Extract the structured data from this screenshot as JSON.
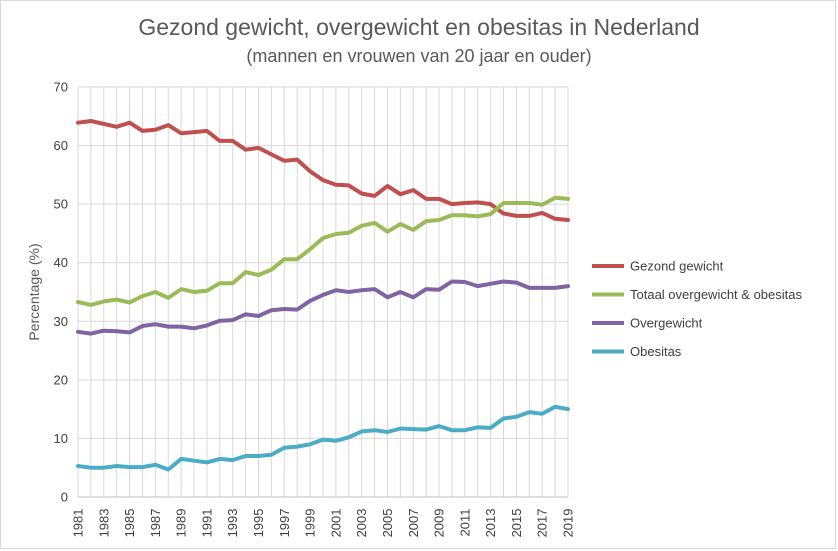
{
  "chart_data": {
    "type": "line",
    "title": "Gezond gewicht, overgewicht en obesitas in Nederland",
    "subtitle": "(mannen en vrouwen van 20 jaar en ouder)",
    "xlabel": "",
    "ylabel": "Percentage (%)",
    "ylim": [
      0,
      70
    ],
    "yticks": [
      0,
      10,
      20,
      30,
      40,
      50,
      60,
      70
    ],
    "x": [
      1981,
      1982,
      1983,
      1984,
      1985,
      1986,
      1987,
      1988,
      1989,
      1990,
      1991,
      1992,
      1993,
      1994,
      1995,
      1996,
      1997,
      1998,
      1999,
      2000,
      2001,
      2002,
      2003,
      2004,
      2005,
      2006,
      2007,
      2008,
      2009,
      2010,
      2011,
      2012,
      2013,
      2014,
      2015,
      2016,
      2017,
      2018,
      2019
    ],
    "xtick_labels": [
      "1981",
      "1983",
      "1985",
      "1987",
      "1989",
      "1991",
      "1993",
      "1995",
      "1997",
      "1999",
      "2001",
      "2003",
      "2005",
      "2007",
      "2009",
      "2011",
      "2013",
      "2015",
      "2017",
      "2019"
    ],
    "grid": true,
    "legend": "right",
    "series": [
      {
        "name": "Gezond gewicht",
        "color": "#c0504d",
        "values": [
          63.9,
          64.2,
          63.7,
          63.2,
          63.9,
          62.5,
          62.7,
          63.5,
          62.1,
          62.3,
          62.5,
          60.8,
          60.8,
          59.3,
          59.6,
          58.5,
          57.4,
          57.6,
          55.6,
          54.1,
          53.3,
          53.2,
          51.8,
          51.4,
          53.1,
          51.7,
          52.4,
          50.9,
          50.9,
          50.0,
          50.2,
          50.3,
          50.0,
          48.4,
          48.0,
          48.0,
          48.5,
          47.5,
          47.3
        ]
      },
      {
        "name": "Totaal overgewicht & obesitas",
        "color": "#9bbb59",
        "values": [
          33.3,
          32.8,
          33.4,
          33.7,
          33.2,
          34.3,
          35.0,
          34.0,
          35.5,
          35.0,
          35.2,
          36.5,
          36.5,
          38.4,
          37.9,
          38.8,
          40.6,
          40.6,
          42.3,
          44.2,
          44.9,
          45.1,
          46.3,
          46.8,
          45.3,
          46.6,
          45.6,
          47.1,
          47.3,
          48.1,
          48.1,
          47.9,
          48.3,
          50.2,
          50.2,
          50.2,
          49.9,
          51.1,
          50.9
        ]
      },
      {
        "name": "Overgewicht",
        "color": "#8064a2",
        "values": [
          28.2,
          27.9,
          28.4,
          28.3,
          28.1,
          29.2,
          29.5,
          29.1,
          29.1,
          28.8,
          29.3,
          30.1,
          30.2,
          31.2,
          30.9,
          31.9,
          32.1,
          32.0,
          33.5,
          34.5,
          35.3,
          35.0,
          35.3,
          35.5,
          34.1,
          35.0,
          34.1,
          35.5,
          35.4,
          36.8,
          36.7,
          36.0,
          36.4,
          36.8,
          36.6,
          35.7,
          35.7,
          35.7,
          36.0
        ]
      },
      {
        "name": "Obesitas",
        "color": "#4bacc6",
        "values": [
          5.3,
          5.0,
          5.0,
          5.3,
          5.1,
          5.1,
          5.5,
          4.7,
          6.5,
          6.2,
          5.9,
          6.5,
          6.3,
          7.0,
          7.0,
          7.2,
          8.4,
          8.6,
          9.0,
          9.8,
          9.6,
          10.2,
          11.2,
          11.4,
          11.1,
          11.7,
          11.6,
          11.5,
          12.1,
          11.4,
          11.4,
          11.9,
          11.8,
          13.4,
          13.7,
          14.5,
          14.2,
          15.4,
          15.0
        ]
      }
    ]
  }
}
